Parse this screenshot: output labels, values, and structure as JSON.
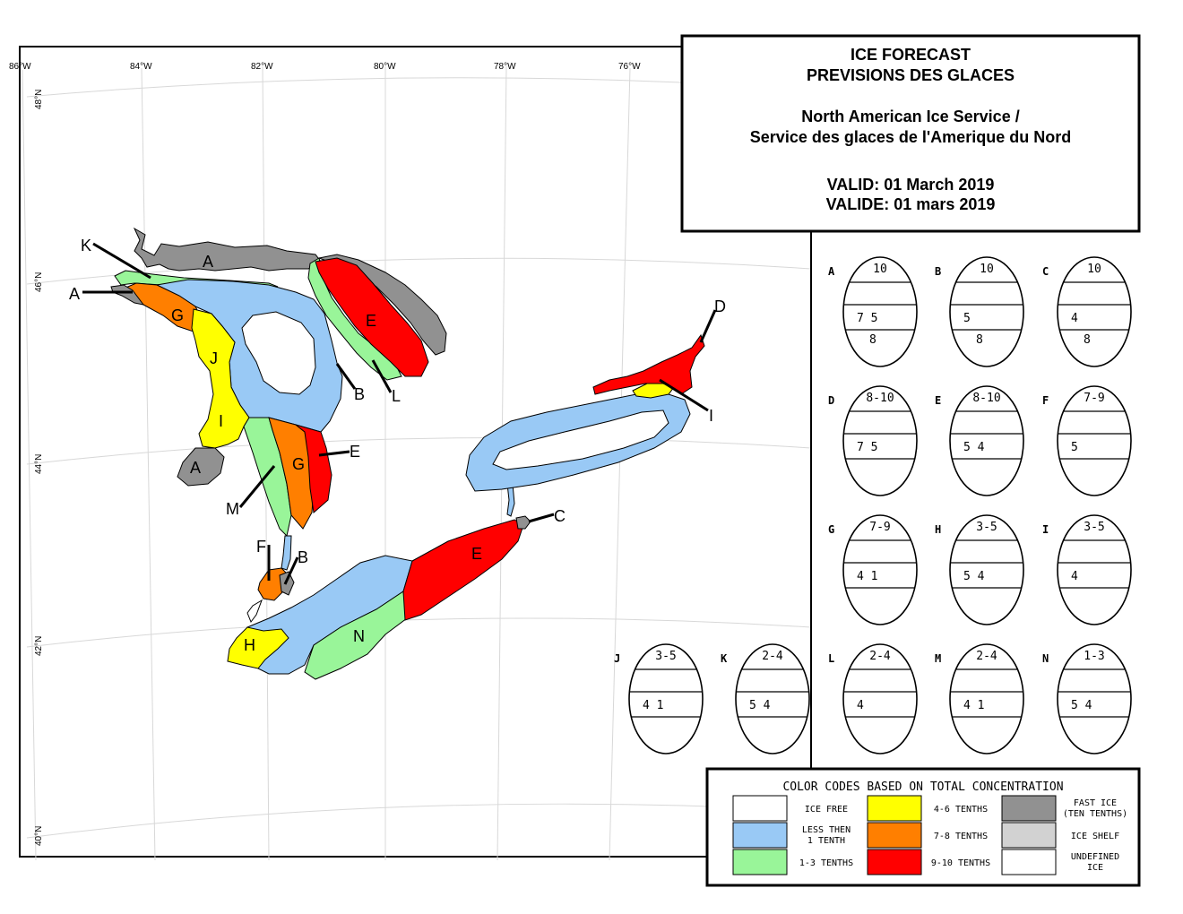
{
  "title": {
    "line1": "ICE FORECAST",
    "line2": "PREVISIONS DES GLACES",
    "line3": "North American Ice Service /",
    "line4": "Service des glaces de l'Amerique du Nord",
    "line5": "VALID: 01 March 2019",
    "line6": "VALIDE: 01 mars 2019"
  },
  "graticule": {
    "lon_labels": [
      "86°W",
      "84°W",
      "82°W",
      "80°W",
      "78°W",
      "76°W"
    ],
    "lat_labels": [
      "48°N",
      "46°N",
      "44°N",
      "42°N",
      "40°N"
    ]
  },
  "map_labels": {
    "huron_north_a": "A",
    "huron_west_a": "A",
    "k": "K",
    "g_north": "G",
    "j": "J",
    "i_huron": "I",
    "a_thumb": "A",
    "m": "M",
    "g_south": "G",
    "e_huron": "E",
    "e_georgian": "E",
    "b_huron": "B",
    "l": "L",
    "d": "D",
    "i_ontario": "I",
    "c": "C",
    "e_erie": "E",
    "f": "F",
    "b_stclair": "B",
    "h": "H",
    "n": "N"
  },
  "egg_codes": [
    {
      "letter": "A",
      "top": "10",
      "mid": "7 5",
      "bot": "8"
    },
    {
      "letter": "B",
      "top": "10",
      "mid": "5",
      "bot": "8"
    },
    {
      "letter": "C",
      "top": "10",
      "mid": "4",
      "bot": "8"
    },
    {
      "letter": "D",
      "top": "8-10",
      "mid": "7 5",
      "bot": ""
    },
    {
      "letter": "E",
      "top": "8-10",
      "mid": "5 4",
      "bot": ""
    },
    {
      "letter": "F",
      "top": "7-9",
      "mid": "5",
      "bot": ""
    },
    {
      "letter": "G",
      "top": "7-9",
      "mid": "4 1",
      "bot": ""
    },
    {
      "letter": "H",
      "top": "3-5",
      "mid": "5 4",
      "bot": ""
    },
    {
      "letter": "I",
      "top": "3-5",
      "mid": "4",
      "bot": ""
    },
    {
      "letter": "J",
      "top": "3-5",
      "mid": "4 1",
      "bot": ""
    },
    {
      "letter": "K",
      "top": "2-4",
      "mid": "5 4",
      "bot": ""
    },
    {
      "letter": "L",
      "top": "2-4",
      "mid": "4",
      "bot": ""
    },
    {
      "letter": "M",
      "top": "2-4",
      "mid": "4 1",
      "bot": ""
    },
    {
      "letter": "N",
      "top": "1-3",
      "mid": "5 4",
      "bot": ""
    }
  ],
  "legend": {
    "title": "COLOR CODES BASED ON TOTAL CONCENTRATION",
    "items": [
      {
        "key": "ice-free",
        "color": "#ffffff",
        "line1": "ICE FREE",
        "line2": ""
      },
      {
        "key": "less-tenth",
        "color": "#99c9f5",
        "line1": "LESS THEN",
        "line2": "1 TENTH"
      },
      {
        "key": "1-3",
        "color": "#99f599",
        "line1": "1-3 TENTHS",
        "line2": ""
      },
      {
        "key": "4-6",
        "color": "#ffff00",
        "line1": "4-6 TENTHS",
        "line2": ""
      },
      {
        "key": "7-8",
        "color": "#ff7f00",
        "line1": "7-8 TENTHS",
        "line2": ""
      },
      {
        "key": "9-10",
        "color": "#ff0000",
        "line1": "9-10 TENTHS",
        "line2": ""
      },
      {
        "key": "fast",
        "color": "#919191",
        "line1": "FAST ICE",
        "line2": "(TEN TENTHS)"
      },
      {
        "key": "shelf",
        "color": "#d2d2d2",
        "line1": "ICE SHELF",
        "line2": ""
      },
      {
        "key": "undefined",
        "color": "#ffffff",
        "line1": "UNDEFINED",
        "line2": "ICE"
      }
    ]
  },
  "colors": {
    "ice_free": "#ffffff",
    "less_tenth": "#99c9f5",
    "one_three": "#99f599",
    "four_six": "#ffff00",
    "seven_eight": "#ff7f00",
    "nine_ten": "#ff0000",
    "fast_ice": "#919191"
  }
}
